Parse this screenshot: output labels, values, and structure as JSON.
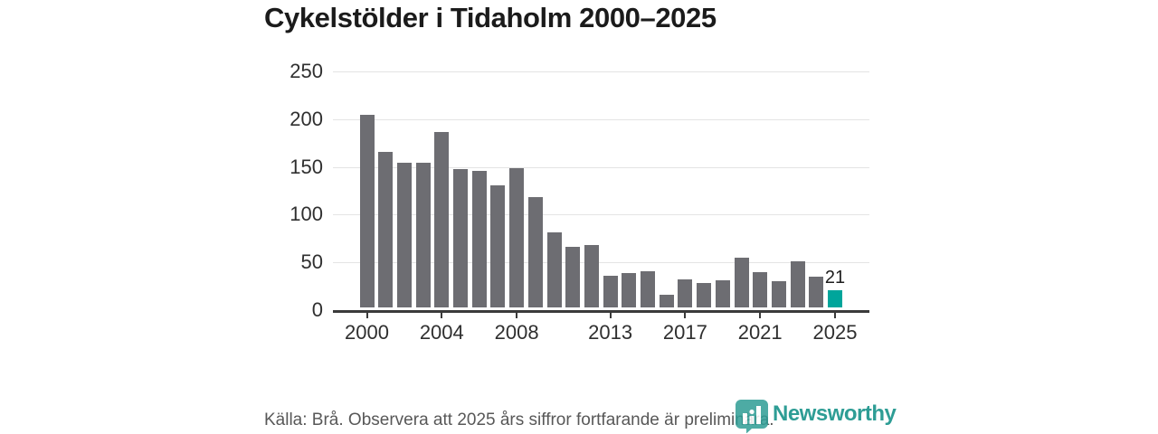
{
  "title": "Cykelstölder i Tidaholm 2000–2025",
  "chart_data": {
    "type": "bar",
    "title": "Cykelstölder i Tidaholm 2000–2025",
    "x": [
      2000,
      2001,
      2002,
      2003,
      2004,
      2005,
      2006,
      2007,
      2008,
      2009,
      2010,
      2011,
      2012,
      2013,
      2014,
      2015,
      2016,
      2017,
      2018,
      2019,
      2020,
      2021,
      2022,
      2023,
      2024,
      2025
    ],
    "values": [
      205,
      166,
      154,
      154,
      187,
      148,
      146,
      131,
      149,
      118,
      81,
      66,
      68,
      36,
      39,
      41,
      16,
      32,
      28,
      31,
      55,
      40,
      30,
      51,
      35,
      21
    ],
    "ylim": [
      0,
      250
    ],
    "yticks": [
      0,
      50,
      100,
      150,
      200,
      250
    ],
    "xticks": [
      2000,
      2004,
      2008,
      2013,
      2017,
      2021,
      2025
    ],
    "grid": "horizontal",
    "legend": "none",
    "bar_color": "#6d6d72",
    "highlight_index": 25,
    "highlight_color": "#00a59b",
    "highlight_value_label": "21"
  },
  "footer": {
    "source_text": "Källa: Brå. Observera att 2025 års siffror fortfarande är preliminära."
  },
  "logo": {
    "text": "Newsworthy",
    "color": "#2e9d95",
    "icon": "newsworthy-speech-bubble-barchart"
  },
  "colors": {
    "background": "#ffffff",
    "title_text": "#1b1b1b",
    "axis_text": "#2f2f2f",
    "gridline": "#e4e4e4",
    "axis_line": "#3a3a3a",
    "footer_text": "#585858"
  }
}
